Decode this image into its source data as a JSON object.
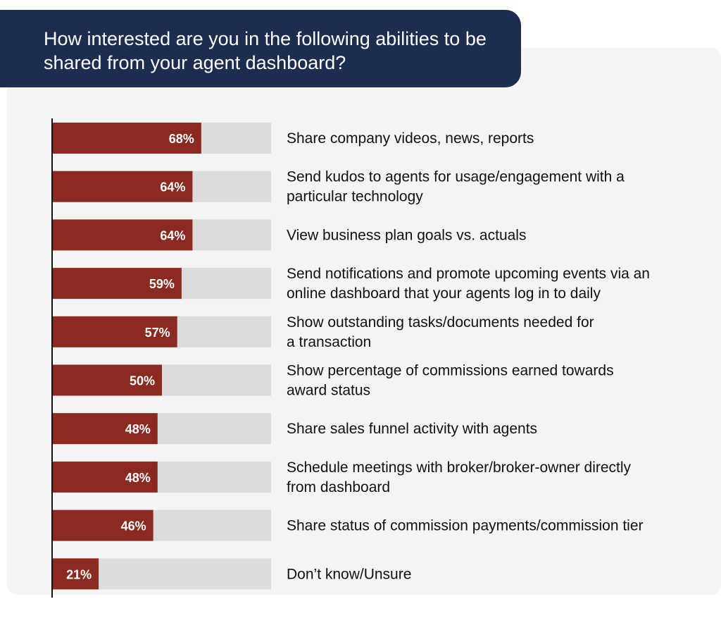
{
  "title": "How interested are you in the following abilities to be shared from your agent dashboard?",
  "colors": {
    "bar": "#8b2a20",
    "track": "#dcdcdc",
    "axis": "#111111",
    "header_bg": "#1d2d50",
    "panel_bg": "#f4f4f5"
  },
  "chart_data": {
    "type": "bar",
    "orientation": "horizontal",
    "title": "How interested are you in the following abilities to be shared from your agent dashboard?",
    "xlim": [
      0,
      100
    ],
    "unit": "%",
    "categories": [
      [
        "Share company videos, news, reports"
      ],
      [
        "Send kudos to agents for usage/engagement with a",
        "particular technology"
      ],
      [
        "View business plan goals vs. actuals"
      ],
      [
        "Send notifications and promote upcoming events via an",
        "online dashboard that your agents log in to daily"
      ],
      [
        "Show outstanding tasks/documents needed for",
        "a transaction"
      ],
      [
        "Show percentage of commissions earned towards",
        "award status"
      ],
      [
        "Share sales funnel activity with agents"
      ],
      [
        "Schedule meetings with broker/broker-owner directly",
        "from dashboard"
      ],
      [
        "Share status of commission payments/commission tier"
      ],
      [
        "Don’t know/Unsure"
      ]
    ],
    "values": [
      68,
      64,
      64,
      59,
      57,
      50,
      48,
      48,
      46,
      21
    ],
    "value_labels": [
      "68%",
      "64%",
      "64%",
      "59%",
      "57%",
      "50%",
      "48%",
      "48%",
      "46%",
      "21%"
    ]
  }
}
